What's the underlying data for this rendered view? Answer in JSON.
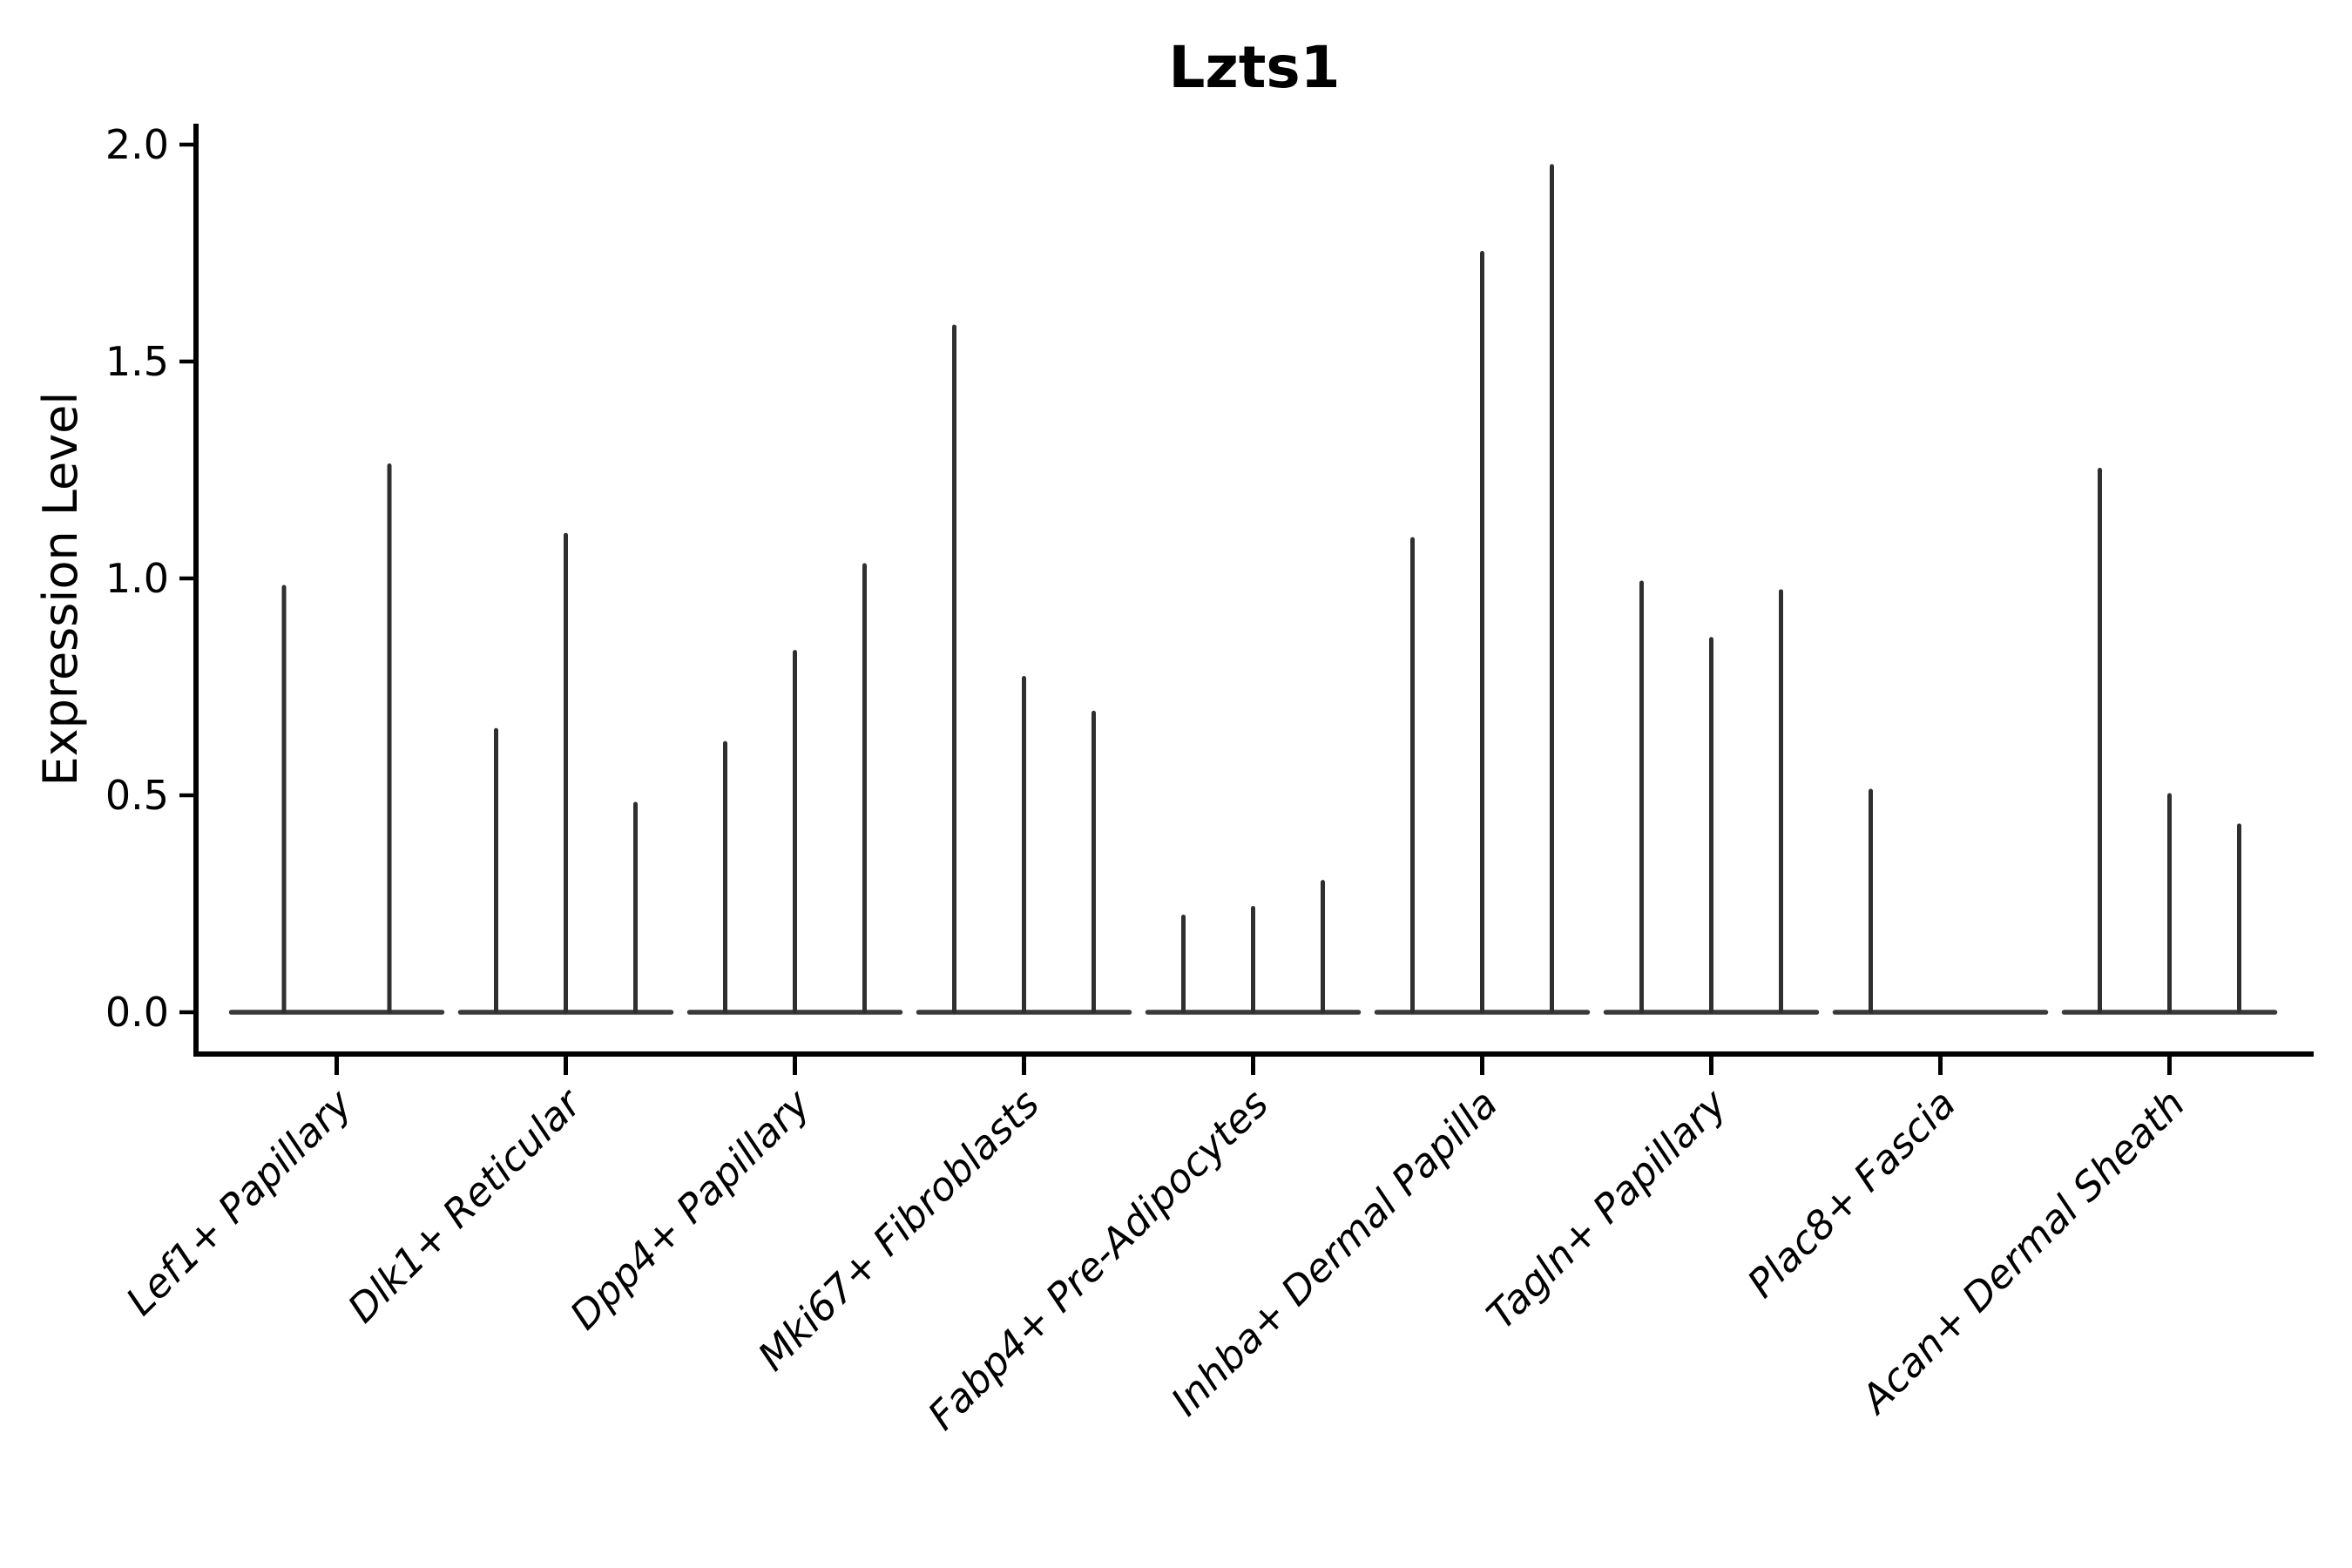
{
  "chart_data": {
    "type": "violin",
    "title": "Lzts1",
    "ylabel": "Expression Level",
    "xlabel": "",
    "yticks": [
      0.0,
      0.5,
      1.0,
      1.5,
      2.0
    ],
    "ylim": [
      -0.1,
      2.05
    ],
    "grid": false,
    "legend": "none",
    "x_tick_label_rotation_deg": 45,
    "x_tick_label_style": "italic",
    "categories": [
      "Lef1+ Papillary",
      "Dlk1+ Reticular",
      "Dpp4+ Papillary",
      "Mki67+ Fibroblasts",
      "Fabp4+ Pre-Adipocytes",
      "Inhba+ Dermal Papilla",
      "Tagln+ Papillary",
      "Plac8+ Fascia",
      "Acan+ Dermal Sheath"
    ],
    "series": [
      {
        "category": "Lef1+ Papillary",
        "violin_max_values": [
          0.98,
          1.26
        ]
      },
      {
        "category": "Dlk1+ Reticular",
        "violin_max_values": [
          0.65,
          1.1,
          0.48
        ]
      },
      {
        "category": "Dpp4+ Papillary",
        "violin_max_values": [
          0.62,
          0.83,
          1.03
        ]
      },
      {
        "category": "Mki67+ Fibroblasts",
        "violin_max_values": [
          1.58,
          0.77,
          0.69
        ]
      },
      {
        "category": "Fabp4+ Pre-Adipocytes",
        "violin_max_values": [
          0.22,
          0.24,
          0.3
        ]
      },
      {
        "category": "Inhba+ Dermal Papilla",
        "violin_max_values": [
          1.09,
          1.75,
          1.95
        ]
      },
      {
        "category": "Tagln+ Papillary",
        "violin_max_values": [
          0.99,
          0.86,
          0.97
        ]
      },
      {
        "category": "Plac8+ Fascia",
        "violin_max_values": [
          0.51,
          0.0,
          0.0
        ]
      },
      {
        "category": "Acan+ Dermal Sheath",
        "violin_max_values": [
          1.25,
          0.5,
          0.43
        ]
      }
    ],
    "description": "Violin plot of Lzts1 expression; each category shows thin mostly-zero violins whose spikes reach the listed maximum expression values",
    "colors": {
      "violin_line": "#2f2f2f",
      "violin_base": "#3a3a3a",
      "axis": "#000000",
      "text": "#000000",
      "background": "#ffffff"
    }
  }
}
